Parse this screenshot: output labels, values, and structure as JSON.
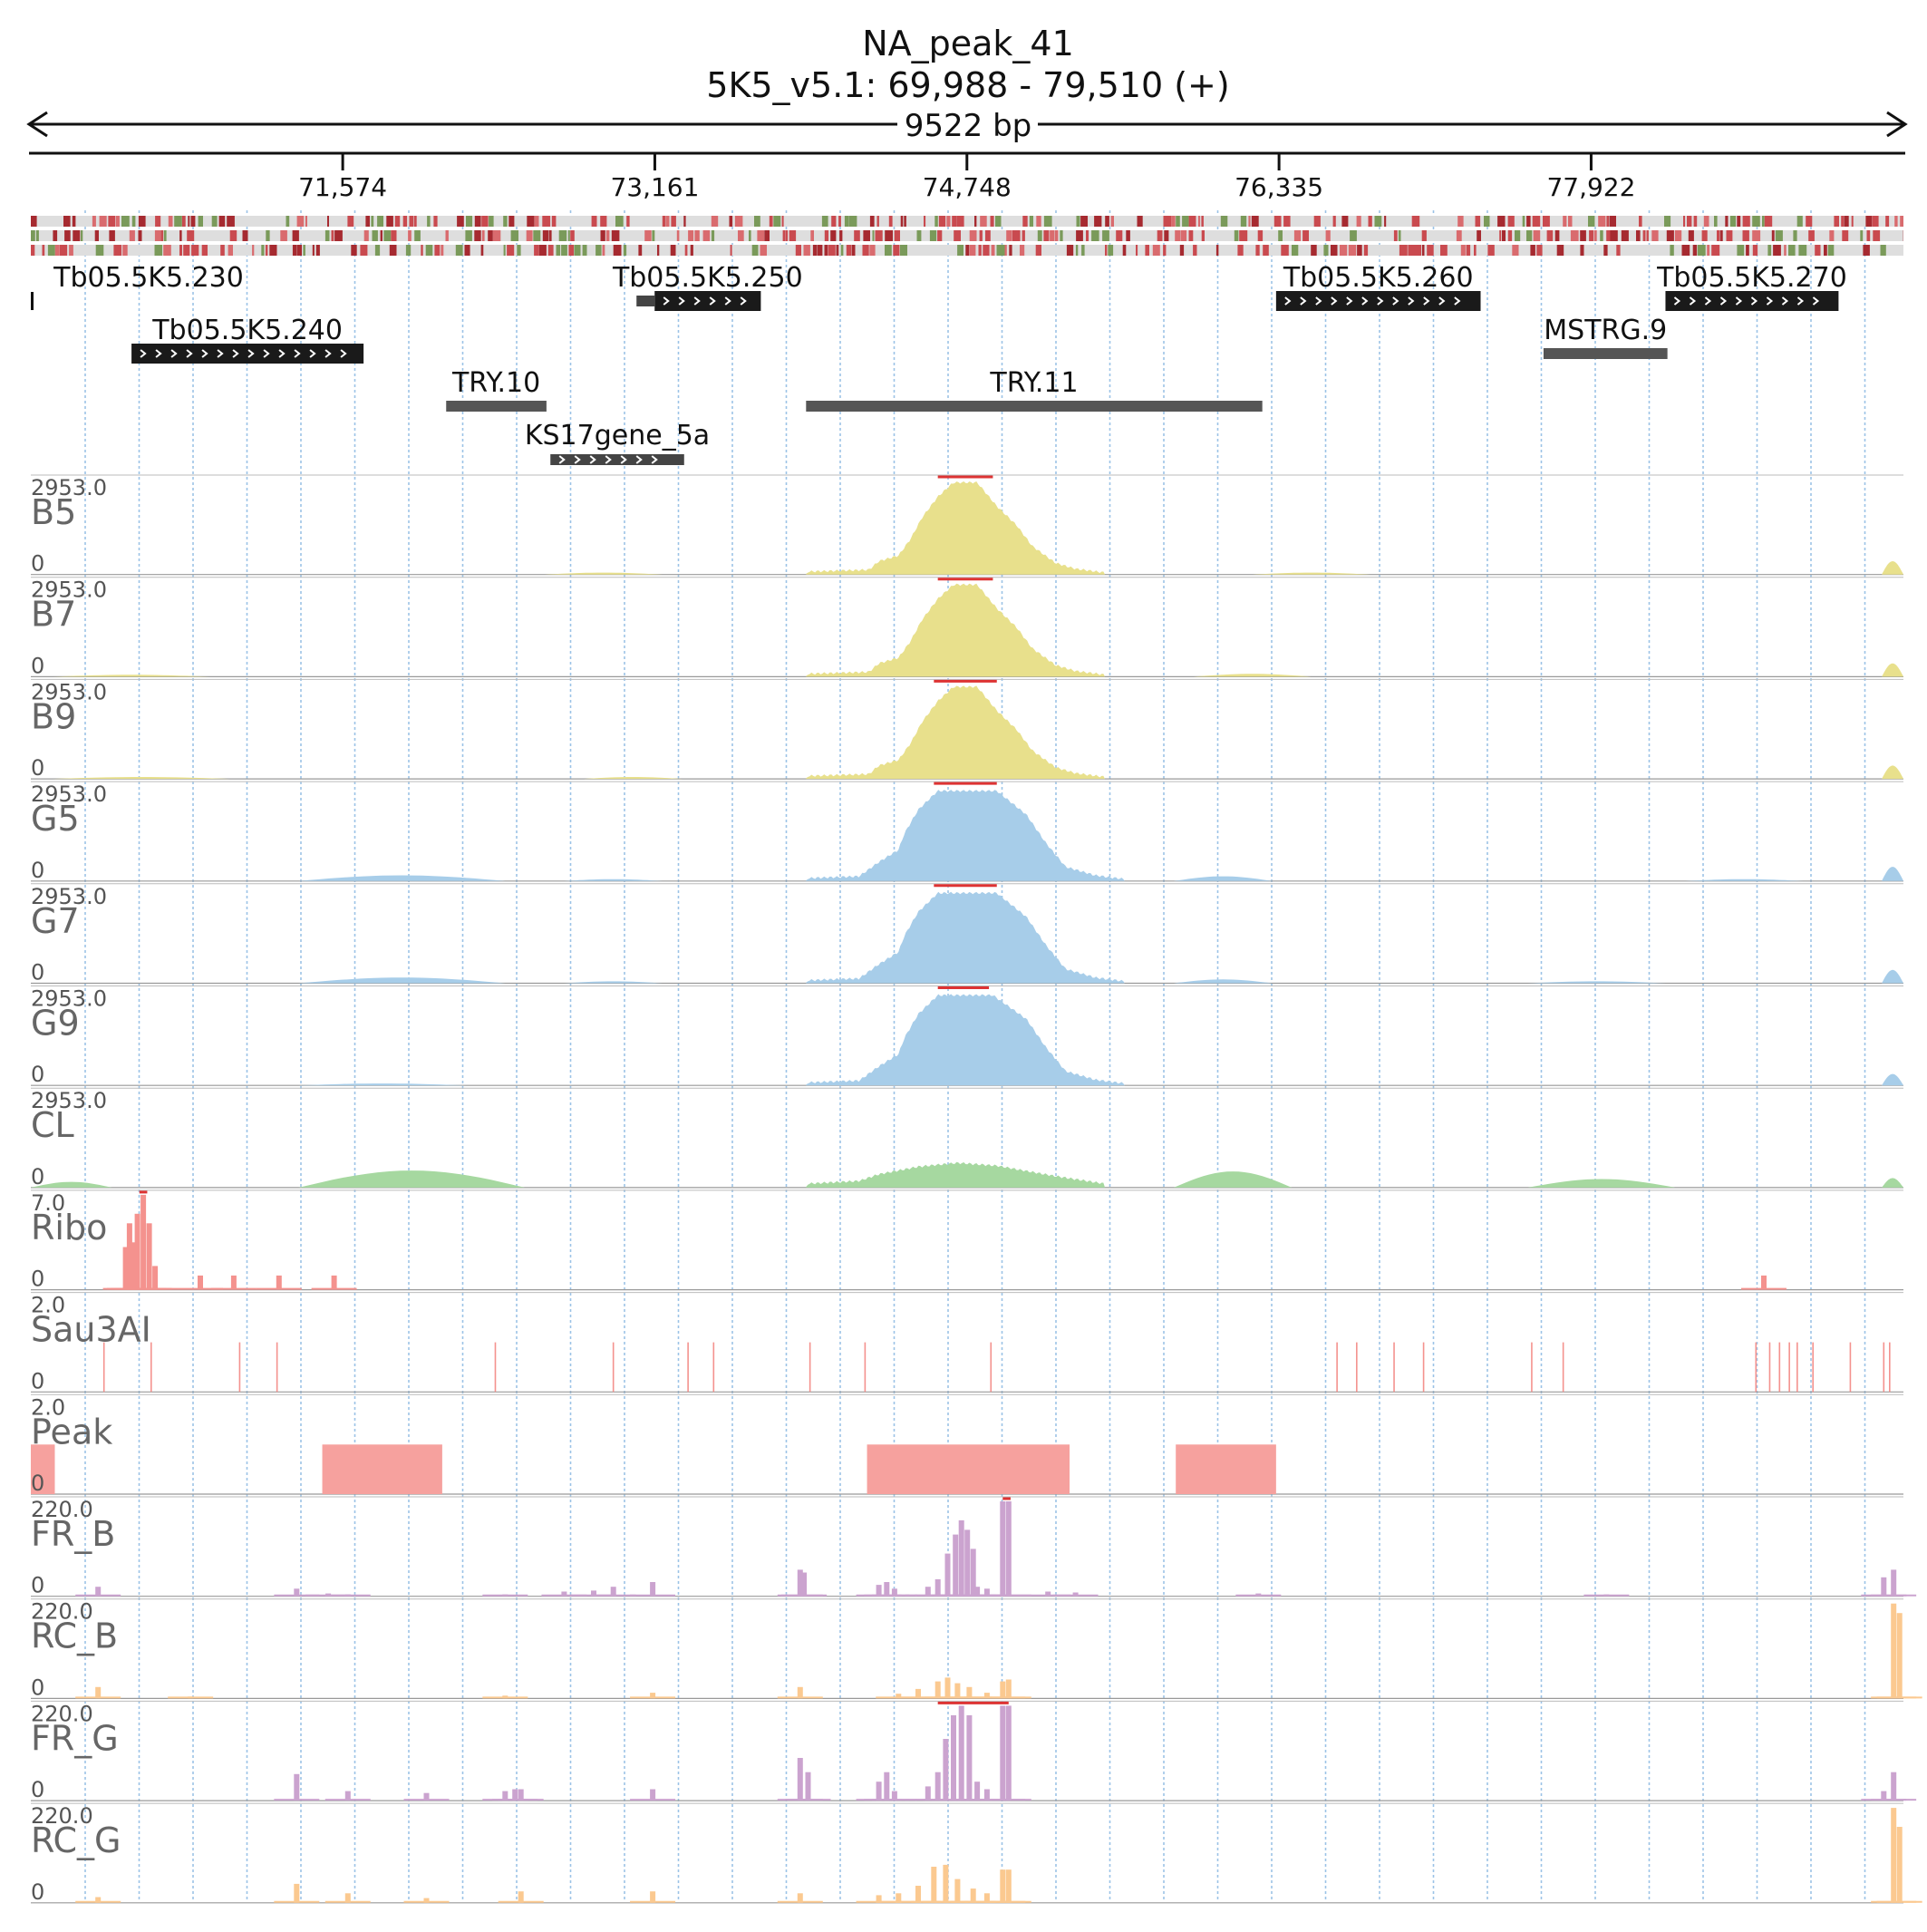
{
  "header": {
    "title": "NA_peak_41",
    "locus": "5K5_v5.1: 69,988 - 79,510 (+)",
    "span": "9522 bp"
  },
  "ruler": {
    "ticks": [
      {
        "label": "71,574",
        "pos": 71574
      },
      {
        "label": "73,161",
        "pos": 73161
      },
      {
        "label": "74,748",
        "pos": 74748
      },
      {
        "label": "76,335",
        "pos": 76335
      },
      {
        "label": "77,922",
        "pos": 77922
      }
    ]
  },
  "genes": [
    {
      "id": "gene-tb230",
      "label": "Tb05.5K5.230",
      "start": 69988,
      "end": 70000,
      "row": 0,
      "style": "mark"
    },
    {
      "id": "gene-tb250",
      "label": "Tb05.5K5.250",
      "start": 73160,
      "end": 73700,
      "row": 0,
      "style": "arrow",
      "cap": true
    },
    {
      "id": "gene-tb260",
      "label": "Tb05.5K5.260",
      "start": 76320,
      "end": 77360,
      "row": 0,
      "style": "arrow"
    },
    {
      "id": "gene-tb270",
      "label": "Tb05.5K5.270",
      "start": 78300,
      "end": 79180,
      "row": 0,
      "style": "arrow"
    },
    {
      "id": "gene-tb240",
      "label": "Tb05.5K5.240",
      "start": 70500,
      "end": 71680,
      "row": 1,
      "style": "arrow"
    },
    {
      "id": "gene-mstrg9",
      "label": "MSTRG.9",
      "start": 77680,
      "end": 78310,
      "row": 1,
      "style": "bar"
    },
    {
      "id": "gene-try10",
      "label": "TRY.10",
      "start": 72100,
      "end": 72610,
      "row": 2,
      "style": "bar"
    },
    {
      "id": "gene-try11",
      "label": "TRY.11",
      "start": 73930,
      "end": 76250,
      "row": 2,
      "style": "bar"
    },
    {
      "id": "gene-ks17",
      "label": "KS17gene_5a",
      "start": 72630,
      "end": 73310,
      "row": 3,
      "style": "arrow",
      "thin": true
    }
  ],
  "tracks": [
    {
      "name": "B5",
      "max": "2953.0",
      "min": "0",
      "kind": "coverage",
      "color": "#e8e08c",
      "clip": [
        74600,
        74880
      ],
      "profile": [
        [
          73930,
          0.03
        ],
        [
          74250,
          0.05
        ],
        [
          74300,
          0.14
        ],
        [
          74400,
          0.2
        ],
        [
          74460,
          0.37
        ],
        [
          74520,
          0.6
        ],
        [
          74600,
          0.82
        ],
        [
          74680,
          0.97
        ],
        [
          74800,
          0.97
        ],
        [
          74900,
          0.72
        ],
        [
          75000,
          0.52
        ],
        [
          75080,
          0.3
        ],
        [
          75200,
          0.12
        ],
        [
          75300,
          0.06
        ],
        [
          75450,
          0.02
        ]
      ],
      "bumps": [
        [
          72600,
          73200,
          0.02
        ],
        [
          76200,
          76800,
          0.02
        ],
        [
          79400,
          79510,
          0.14
        ]
      ]
    },
    {
      "name": "B7",
      "max": "2953.0",
      "min": "0",
      "kind": "coverage",
      "color": "#e8e08c",
      "clip": [
        74600,
        74880
      ],
      "profile": [
        [
          73930,
          0.03
        ],
        [
          74250,
          0.05
        ],
        [
          74300,
          0.14
        ],
        [
          74400,
          0.2
        ],
        [
          74460,
          0.37
        ],
        [
          74520,
          0.6
        ],
        [
          74600,
          0.82
        ],
        [
          74680,
          0.97
        ],
        [
          74800,
          0.97
        ],
        [
          74900,
          0.72
        ],
        [
          75000,
          0.52
        ],
        [
          75080,
          0.3
        ],
        [
          75200,
          0.12
        ],
        [
          75300,
          0.06
        ],
        [
          75450,
          0.02
        ]
      ],
      "bumps": [
        [
          70100,
          70900,
          0.02
        ],
        [
          75900,
          76500,
          0.03
        ],
        [
          79400,
          79510,
          0.14
        ]
      ]
    },
    {
      "name": "B9",
      "max": "2953.0",
      "min": "0",
      "kind": "coverage",
      "color": "#e8e08c",
      "clip": [
        74580,
        74900
      ],
      "profile": [
        [
          73930,
          0.03
        ],
        [
          74250,
          0.05
        ],
        [
          74300,
          0.14
        ],
        [
          74400,
          0.2
        ],
        [
          74460,
          0.37
        ],
        [
          74520,
          0.6
        ],
        [
          74600,
          0.82
        ],
        [
          74680,
          0.97
        ],
        [
          74800,
          0.97
        ],
        [
          74900,
          0.72
        ],
        [
          75000,
          0.52
        ],
        [
          75080,
          0.3
        ],
        [
          75200,
          0.12
        ],
        [
          75300,
          0.06
        ],
        [
          75450,
          0.02
        ]
      ],
      "bumps": [
        [
          70100,
          71000,
          0.02
        ],
        [
          72800,
          73300,
          0.02
        ],
        [
          79400,
          79510,
          0.14
        ]
      ]
    },
    {
      "name": "G5",
      "max": "2953.0",
      "min": "0",
      "kind": "coverage",
      "color": "#a7cde9",
      "clip": [
        74580,
        74900
      ],
      "profile": [
        [
          73930,
          0.03
        ],
        [
          74200,
          0.05
        ],
        [
          74300,
          0.2
        ],
        [
          74400,
          0.33
        ],
        [
          74430,
          0.5
        ],
        [
          74500,
          0.75
        ],
        [
          74600,
          0.95
        ],
        [
          74900,
          0.95
        ],
        [
          75050,
          0.7
        ],
        [
          75150,
          0.4
        ],
        [
          75250,
          0.15
        ],
        [
          75400,
          0.06
        ],
        [
          75550,
          0.02
        ]
      ],
      "bumps": [
        [
          71350,
          72400,
          0.06
        ],
        [
          72700,
          73200,
          0.02
        ],
        [
          75800,
          76300,
          0.05
        ],
        [
          78400,
          79000,
          0.02
        ],
        [
          79400,
          79510,
          0.15
        ]
      ]
    },
    {
      "name": "G7",
      "max": "2953.0",
      "min": "0",
      "kind": "coverage",
      "color": "#a7cde9",
      "clip": [
        74580,
        74900
      ],
      "profile": [
        [
          73930,
          0.03
        ],
        [
          74200,
          0.05
        ],
        [
          74300,
          0.2
        ],
        [
          74400,
          0.33
        ],
        [
          74430,
          0.5
        ],
        [
          74500,
          0.75
        ],
        [
          74600,
          0.95
        ],
        [
          74900,
          0.95
        ],
        [
          75050,
          0.7
        ],
        [
          75150,
          0.4
        ],
        [
          75250,
          0.15
        ],
        [
          75400,
          0.06
        ],
        [
          75550,
          0.02
        ]
      ],
      "bumps": [
        [
          71350,
          72400,
          0.06
        ],
        [
          72700,
          73200,
          0.02
        ],
        [
          75800,
          76300,
          0.04
        ],
        [
          77600,
          78300,
          0.02
        ],
        [
          79400,
          79510,
          0.14
        ]
      ]
    },
    {
      "name": "G9",
      "max": "2953.0",
      "min": "0",
      "kind": "coverage",
      "color": "#a7cde9",
      "clip": [
        74600,
        74860
      ],
      "profile": [
        [
          73930,
          0.03
        ],
        [
          74200,
          0.05
        ],
        [
          74300,
          0.2
        ],
        [
          74400,
          0.33
        ],
        [
          74430,
          0.5
        ],
        [
          74500,
          0.75
        ],
        [
          74600,
          0.95
        ],
        [
          74880,
          0.95
        ],
        [
          75050,
          0.7
        ],
        [
          75150,
          0.4
        ],
        [
          75250,
          0.15
        ],
        [
          75400,
          0.06
        ],
        [
          75550,
          0.02
        ]
      ],
      "bumps": [
        [
          71350,
          72200,
          0.02
        ],
        [
          79400,
          79510,
          0.12
        ]
      ]
    },
    {
      "name": "CL",
      "max": "2953.0",
      "min": "0",
      "kind": "coverage",
      "color": "#a6d8a0",
      "clip": null,
      "profile": [
        [
          73930,
          0.04
        ],
        [
          74200,
          0.07
        ],
        [
          74300,
          0.14
        ],
        [
          74500,
          0.22
        ],
        [
          74700,
          0.26
        ],
        [
          74900,
          0.23
        ],
        [
          75200,
          0.12
        ],
        [
          75450,
          0.04
        ]
      ],
      "bumps": [
        [
          69988,
          70400,
          0.06
        ],
        [
          71350,
          72500,
          0.18
        ],
        [
          75800,
          76400,
          0.17
        ],
        [
          77600,
          78350,
          0.09
        ],
        [
          79400,
          79510,
          0.1
        ]
      ]
    },
    {
      "name": "Ribo",
      "max": "7.0",
      "min": "0",
      "kind": "spikes",
      "color": "#f4928e",
      "clip": [
        70540,
        70580
      ],
      "spikes": [
        [
          70470,
          0.45
        ],
        [
          70490,
          0.7
        ],
        [
          70510,
          0.5
        ],
        [
          70530,
          0.8
        ],
        [
          70560,
          1.0
        ],
        [
          70590,
          0.7
        ],
        [
          70620,
          0.25
        ],
        [
          70850,
          0.15
        ],
        [
          71020,
          0.15
        ],
        [
          71250,
          0.15
        ],
        [
          71530,
          0.15
        ],
        [
          78800,
          0.15
        ]
      ]
    },
    {
      "name": "Sau3AI",
      "max": "2.0",
      "min": "0",
      "kind": "sites",
      "color": "#f4928e",
      "sites": [
        70360,
        70600,
        71050,
        71240,
        72350,
        72950,
        73330,
        73460,
        73950,
        74230,
        74870,
        76630,
        76730,
        76920,
        77070,
        77620,
        77780,
        78760,
        78830,
        78880,
        78930,
        78970,
        79050,
        79240,
        79410,
        79440
      ]
    },
    {
      "name": "Peak",
      "max": "2.0",
      "min": "0",
      "kind": "blocks",
      "color": "#f6a19e",
      "blocks": [
        [
          69988,
          70110
        ],
        [
          71470,
          72080
        ],
        [
          74240,
          75270
        ],
        [
          75810,
          76320
        ]
      ]
    },
    {
      "name": "FR_B",
      "max": "220.0",
      "min": "0",
      "kind": "spikes",
      "color": "#cba3cf",
      "clip": [
        74930,
        74970
      ],
      "spikes": [
        [
          70330,
          0.1
        ],
        [
          71340,
          0.08
        ],
        [
          71500,
          0.03
        ],
        [
          71600,
          0.02
        ],
        [
          72400,
          0.02
        ],
        [
          72700,
          0.05
        ],
        [
          72850,
          0.06
        ],
        [
          72950,
          0.1
        ],
        [
          73150,
          0.15
        ],
        [
          73900,
          0.28
        ],
        [
          73920,
          0.25
        ],
        [
          74300,
          0.12
        ],
        [
          74340,
          0.15
        ],
        [
          74380,
          0.08
        ],
        [
          74550,
          0.1
        ],
        [
          74600,
          0.18
        ],
        [
          74650,
          0.45
        ],
        [
          74690,
          0.65
        ],
        [
          74720,
          0.8
        ],
        [
          74750,
          0.7
        ],
        [
          74780,
          0.5
        ],
        [
          74800,
          0.1
        ],
        [
          74850,
          0.08
        ],
        [
          74930,
          1.0
        ],
        [
          74960,
          1.0
        ],
        [
          75160,
          0.05
        ],
        [
          75300,
          0.04
        ],
        [
          76230,
          0.03
        ],
        [
          78000,
          0.02
        ],
        [
          79410,
          0.2
        ],
        [
          79460,
          0.28
        ]
      ]
    },
    {
      "name": "RC_B",
      "max": "220.0",
      "min": "0",
      "kind": "spikes",
      "color": "#fbc990",
      "clip": null,
      "spikes": [
        [
          70330,
          0.12
        ],
        [
          70800,
          0.02
        ],
        [
          72400,
          0.03
        ],
        [
          73150,
          0.06
        ],
        [
          73900,
          0.12
        ],
        [
          74400,
          0.05
        ],
        [
          74500,
          0.1
        ],
        [
          74600,
          0.18
        ],
        [
          74650,
          0.22
        ],
        [
          74700,
          0.16
        ],
        [
          74760,
          0.12
        ],
        [
          74850,
          0.06
        ],
        [
          74930,
          0.18
        ],
        [
          74960,
          0.2
        ],
        [
          79460,
          1.0
        ],
        [
          79490,
          0.9
        ]
      ]
    },
    {
      "name": "FR_G",
      "max": "220.0",
      "min": "0",
      "kind": "spikes",
      "color": "#cba3cf",
      "clip": [
        74600,
        74960
      ],
      "spikes": [
        [
          71340,
          0.28
        ],
        [
          71600,
          0.1
        ],
        [
          72000,
          0.08
        ],
        [
          72400,
          0.1
        ],
        [
          72450,
          0.12
        ],
        [
          72480,
          0.12
        ],
        [
          73150,
          0.12
        ],
        [
          73900,
          0.45
        ],
        [
          73940,
          0.3
        ],
        [
          74300,
          0.2
        ],
        [
          74340,
          0.3
        ],
        [
          74380,
          0.1
        ],
        [
          74550,
          0.15
        ],
        [
          74600,
          0.3
        ],
        [
          74640,
          0.65
        ],
        [
          74680,
          0.9
        ],
        [
          74720,
          1.0
        ],
        [
          74760,
          0.9
        ],
        [
          74800,
          0.2
        ],
        [
          74850,
          0.12
        ],
        [
          74930,
          1.0
        ],
        [
          74960,
          1.0
        ],
        [
          79410,
          0.1
        ],
        [
          79460,
          0.3
        ]
      ]
    },
    {
      "name": "RC_G",
      "max": "220.0",
      "min": "0",
      "kind": "spikes",
      "color": "#fbc990",
      "clip": null,
      "spikes": [
        [
          70330,
          0.06
        ],
        [
          71340,
          0.2
        ],
        [
          71600,
          0.1
        ],
        [
          72000,
          0.05
        ],
        [
          72480,
          0.12
        ],
        [
          73150,
          0.12
        ],
        [
          73900,
          0.1
        ],
        [
          74300,
          0.08
        ],
        [
          74400,
          0.1
        ],
        [
          74500,
          0.18
        ],
        [
          74580,
          0.38
        ],
        [
          74640,
          0.4
        ],
        [
          74700,
          0.25
        ],
        [
          74780,
          0.15
        ],
        [
          74850,
          0.1
        ],
        [
          74930,
          0.35
        ],
        [
          74960,
          0.35
        ],
        [
          79460,
          1.0
        ],
        [
          79490,
          0.8
        ]
      ]
    }
  ]
}
